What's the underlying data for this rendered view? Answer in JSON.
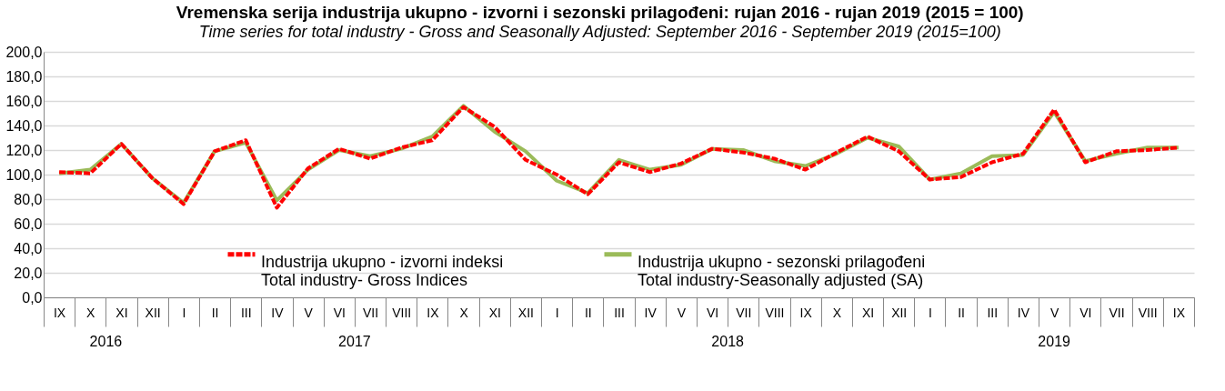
{
  "chart_data": {
    "type": "line",
    "title": "Vremenska serija industrija ukupno - izvorni i sezonski prilagođeni: rujan 2016 - rujan 2019 (2015 = 100)",
    "subtitle": "Time series for total industry - Gross and Seasonally Adjusted: September 2016 - September 2019 (2015=100)",
    "categories": [
      "IX",
      "X",
      "XI",
      "XII",
      "I",
      "II",
      "III",
      "IV",
      "V",
      "VI",
      "VII",
      "VIII",
      "IX",
      "X",
      "XI",
      "XII",
      "I",
      "II",
      "III",
      "IV",
      "V",
      "VI",
      "VII",
      "VIII",
      "IX",
      "X",
      "XI",
      "XII",
      "I",
      "II",
      "III",
      "IV",
      "V",
      "VI",
      "VII",
      "VIII",
      "IX"
    ],
    "annotations": [
      "2016",
      "2017",
      "2018",
      "2019"
    ],
    "series": [
      {
        "name": "Industrija ukupno - izvorni indeksi\nTotal industry- Gross Indices",
        "color": "#ff0000",
        "line_style": "dashed",
        "values": [
          102,
          101,
          125,
          97,
          76,
          119,
          128,
          73,
          105,
          121,
          113,
          122,
          128,
          155,
          139,
          112,
          100,
          84,
          110,
          102,
          109,
          121,
          118,
          113,
          104,
          118,
          131,
          119,
          96,
          98,
          110,
          117,
          153,
          110,
          119,
          120,
          122
        ]
      },
      {
        "name": "Industrija ukupno - sezonski prilagođeni\nTotal industry-Seasonally adjusted (SA)",
        "color": "#9bbb59",
        "line_style": "solid",
        "values": [
          101,
          104,
          125,
          97,
          77,
          119,
          126,
          79,
          104,
          120,
          115,
          121,
          131,
          156,
          135,
          119,
          95,
          85,
          112,
          104,
          108,
          121,
          120,
          111,
          107,
          117,
          130,
          123,
          96,
          101,
          115,
          116,
          151,
          111,
          117,
          122,
          122
        ]
      }
    ],
    "ylim": [
      0,
      200
    ],
    "yticks": [
      {
        "value": 0,
        "label": "0,0"
      },
      {
        "value": 20,
        "label": "20,0"
      },
      {
        "value": 40,
        "label": "40,0"
      },
      {
        "value": 60,
        "label": "60,0"
      },
      {
        "value": 80,
        "label": "80,0"
      },
      {
        "value": 100,
        "label": "100,0"
      },
      {
        "value": 120,
        "label": "120,0"
      },
      {
        "value": 140,
        "label": "140,0"
      },
      {
        "value": 160,
        "label": "160,0"
      },
      {
        "value": 180,
        "label": "180,0"
      },
      {
        "value": 200,
        "label": "200,0"
      }
    ],
    "grid": "y",
    "legend": "bottom",
    "marker": "none"
  }
}
